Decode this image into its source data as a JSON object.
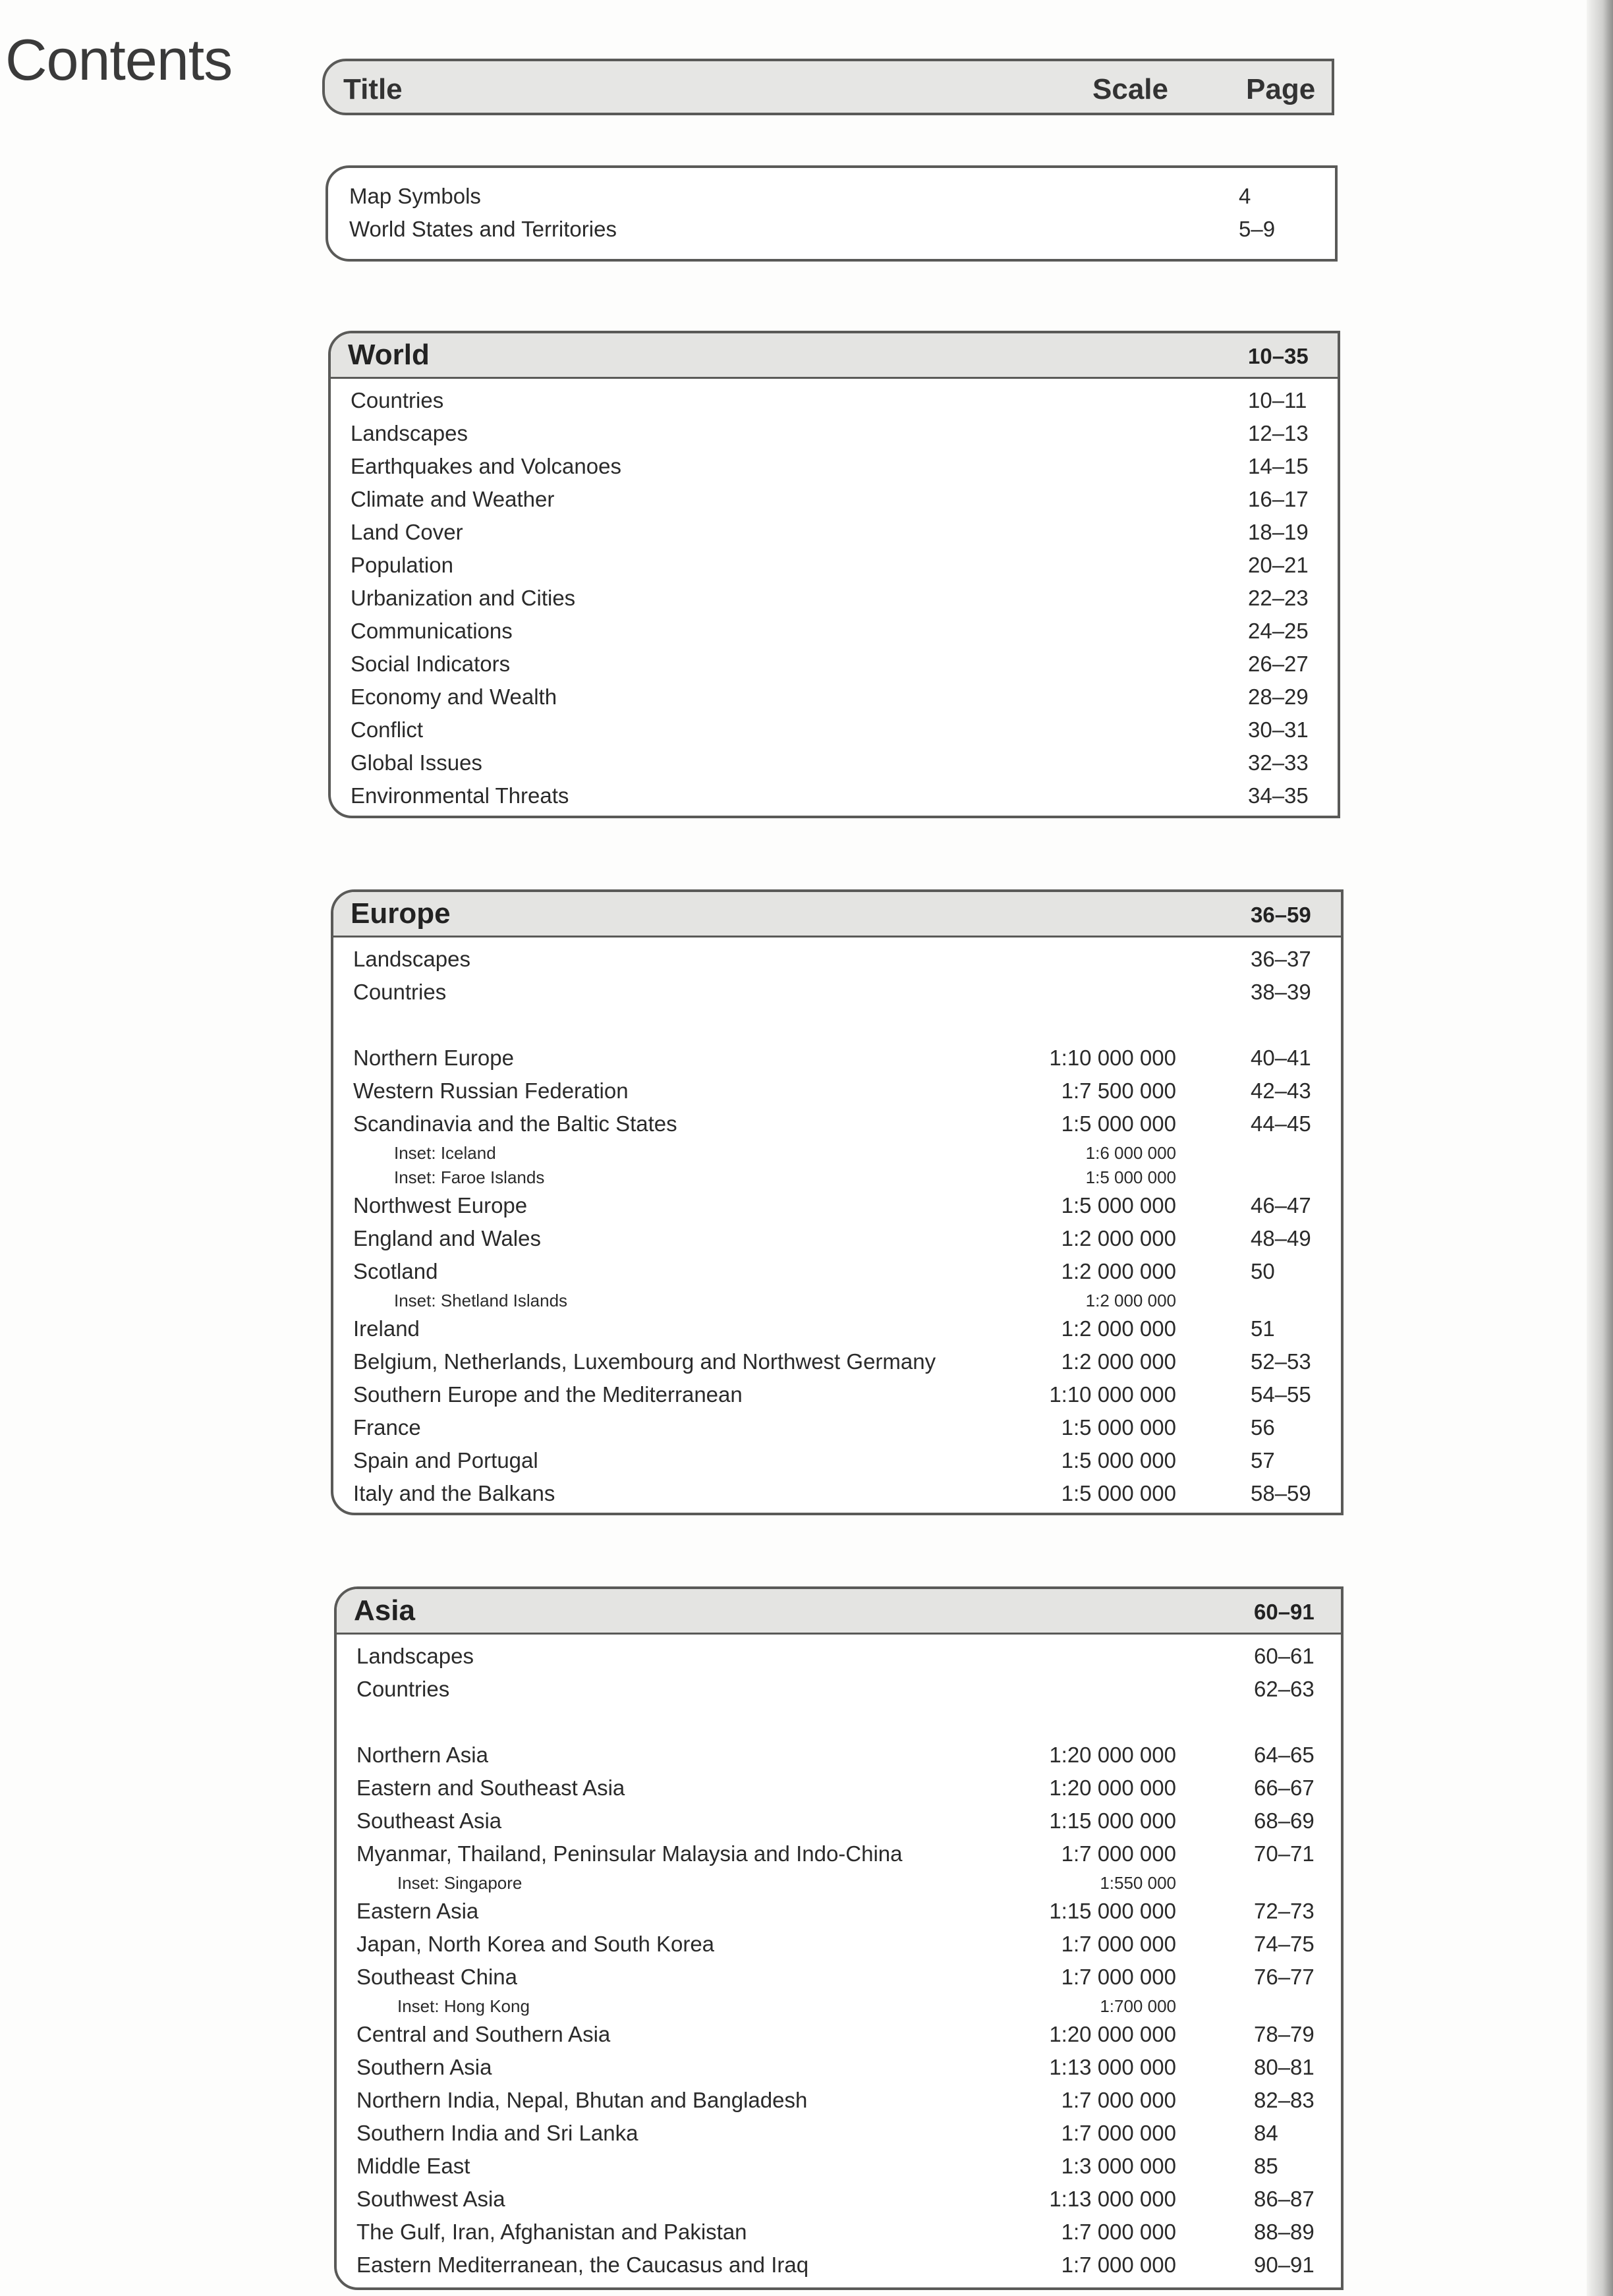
{
  "page_title": "Contents",
  "header": {
    "title": "Title",
    "scale": "Scale",
    "page": "Page"
  },
  "intro": [
    {
      "title": "Map Symbols",
      "page": "4"
    },
    {
      "title": "World States and Territories",
      "page": "5–9"
    }
  ],
  "sections": [
    {
      "name": "World",
      "pages": "10–35",
      "rows": [
        {
          "title": "Countries",
          "page": "10–11"
        },
        {
          "title": "Landscapes",
          "page": "12–13"
        },
        {
          "title": "Earthquakes and Volcanoes",
          "page": "14–15"
        },
        {
          "title": "Climate and Weather",
          "page": "16–17"
        },
        {
          "title": "Land Cover",
          "page": "18–19"
        },
        {
          "title": "Population",
          "page": "20–21"
        },
        {
          "title": "Urbanization and Cities",
          "page": "22–23"
        },
        {
          "title": "Communications",
          "page": "24–25"
        },
        {
          "title": "Social Indicators",
          "page": "26–27"
        },
        {
          "title": "Economy and Wealth",
          "page": "28–29"
        },
        {
          "title": "Conflict",
          "page": "30–31"
        },
        {
          "title": "Global Issues",
          "page": "32–33"
        },
        {
          "title": "Environmental Threats",
          "page": "34–35"
        }
      ]
    },
    {
      "name": "Europe",
      "pages": "36–59",
      "rows": [
        {
          "title": "Landscapes",
          "page": "36–37"
        },
        {
          "title": "Countries",
          "page": "38–39"
        },
        {
          "gap": true
        },
        {
          "title": "Northern Europe",
          "scale": "1:10 000 000",
          "page": "40–41"
        },
        {
          "title": "Western Russian Federation",
          "scale": "1:7 500 000",
          "page": "42–43"
        },
        {
          "title": "Scandinavia and the Baltic States",
          "scale": "1:5 000 000",
          "page": "44–45",
          "insets": [
            {
              "title": "Inset: Iceland",
              "scale": "1:6 000 000"
            },
            {
              "title": "Inset: Faroe Islands",
              "scale": "1:5 000 000"
            }
          ]
        },
        {
          "title": "Northwest Europe",
          "scale": "1:5 000 000",
          "page": "46–47"
        },
        {
          "title": "England and Wales",
          "scale": "1:2 000 000",
          "page": "48–49"
        },
        {
          "title": "Scotland",
          "scale": "1:2 000 000",
          "page": "50",
          "insets": [
            {
              "title": "Inset: Shetland Islands",
              "scale": "1:2 000 000"
            }
          ]
        },
        {
          "title": "Ireland",
          "scale": "1:2 000 000",
          "page": "51"
        },
        {
          "title": "Belgium, Netherlands, Luxembourg and Northwest Germany",
          "scale": "1:2 000 000",
          "page": "52–53"
        },
        {
          "title": "Southern Europe and the Mediterranean",
          "scale": "1:10 000 000",
          "page": "54–55"
        },
        {
          "title": "France",
          "scale": "1:5 000 000",
          "page": "56"
        },
        {
          "title": "Spain and Portugal",
          "scale": "1:5 000 000",
          "page": "57"
        },
        {
          "title": "Italy and the Balkans",
          "scale": "1:5 000 000",
          "page": "58–59"
        }
      ]
    },
    {
      "name": "Asia",
      "pages": "60–91",
      "rows": [
        {
          "title": "Landscapes",
          "page": "60–61"
        },
        {
          "title": "Countries",
          "page": "62–63"
        },
        {
          "gap": true
        },
        {
          "title": "Northern Asia",
          "scale": "1:20 000 000",
          "page": "64–65"
        },
        {
          "title": "Eastern and Southeast Asia",
          "scale": "1:20 000 000",
          "page": "66–67"
        },
        {
          "title": "Southeast Asia",
          "scale": "1:15 000 000",
          "page": "68–69"
        },
        {
          "title": "Myanmar, Thailand, Peninsular Malaysia and Indo-China",
          "scale": "1:7 000 000",
          "page": "70–71",
          "insets": [
            {
              "title": "Inset: Singapore",
              "scale": "1:550 000"
            }
          ]
        },
        {
          "title": "Eastern Asia",
          "scale": "1:15 000 000",
          "page": "72–73"
        },
        {
          "title": "Japan, North Korea and South Korea",
          "scale": "1:7 000 000",
          "page": "74–75"
        },
        {
          "title": "Southeast China",
          "scale": "1:7 000 000",
          "page": "76–77",
          "insets": [
            {
              "title": "Inset: Hong Kong",
              "scale": "1:700 000"
            }
          ]
        },
        {
          "title": "Central and Southern Asia",
          "scale": "1:20 000 000",
          "page": "78–79"
        },
        {
          "title": "Southern Asia",
          "scale": "1:13 000 000",
          "page": "80–81"
        },
        {
          "title": "Northern India, Nepal, Bhutan and Bangladesh",
          "scale": "1:7 000 000",
          "page": "82–83"
        },
        {
          "title": "Southern India and Sri Lanka",
          "scale": "1:7 000 000",
          "page": "84"
        },
        {
          "title": "Middle East",
          "scale": "1:3 000 000",
          "page": "85"
        },
        {
          "title": "Southwest Asia",
          "scale": "1:13 000 000",
          "page": "86–87"
        },
        {
          "title": "The Gulf, Iran, Afghanistan and Pakistan",
          "scale": "1:7 000 000",
          "page": "88–89"
        },
        {
          "title": "Eastern Mediterranean, the Caucasus and Iraq",
          "scale": "1:7 000 000",
          "page": "90–91"
        }
      ]
    }
  ]
}
